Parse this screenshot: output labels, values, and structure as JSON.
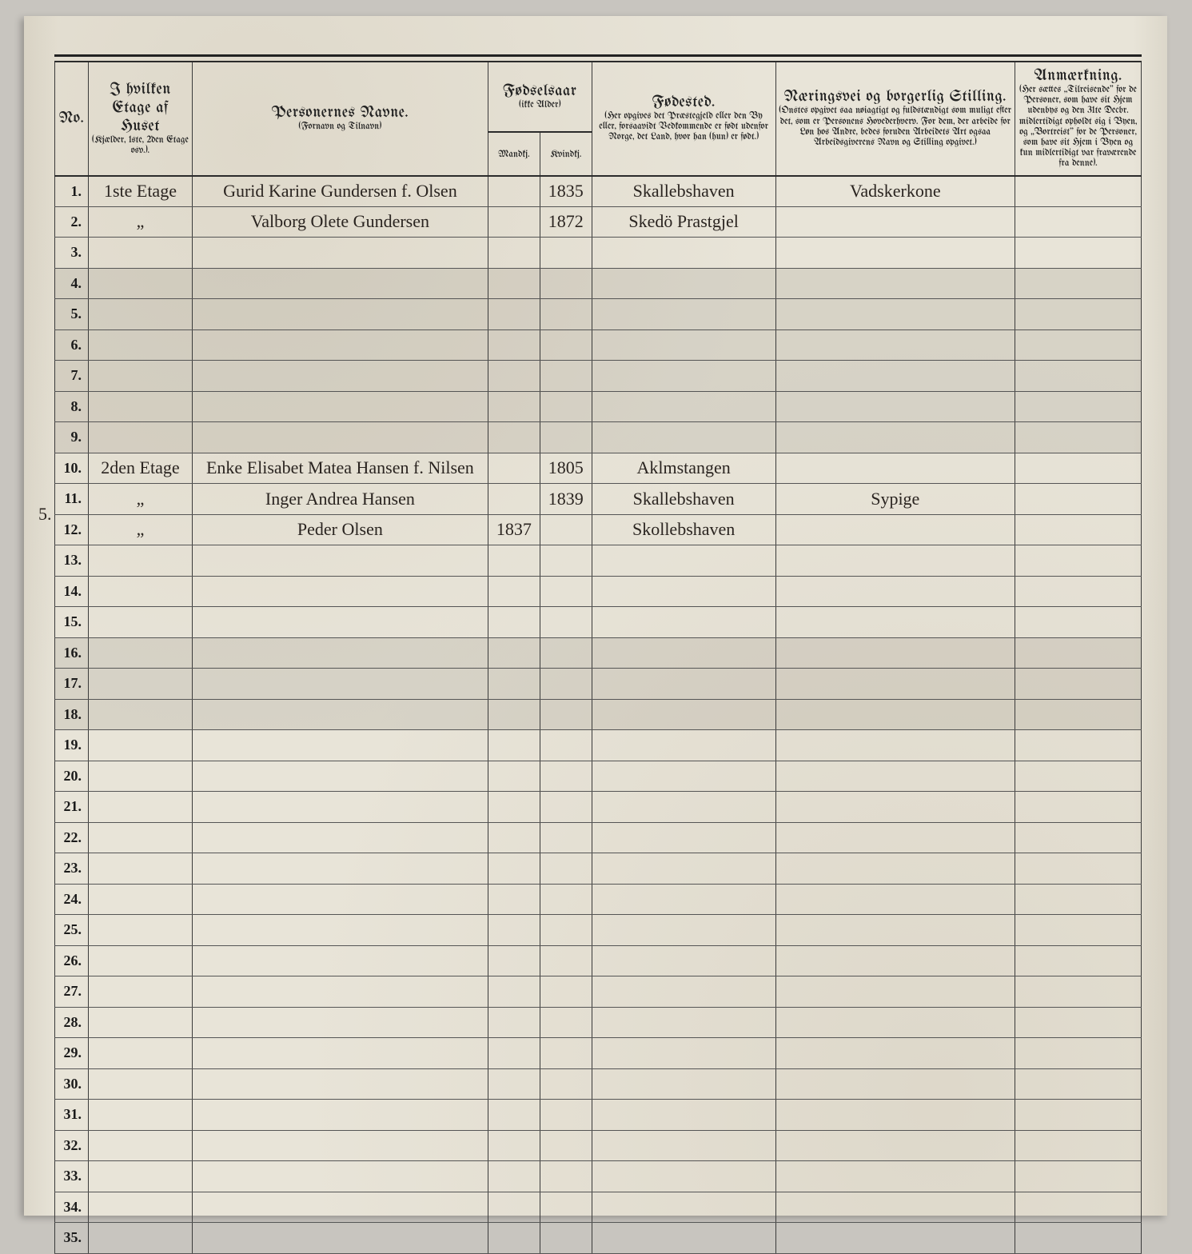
{
  "colors": {
    "page_bg": "#e8e4d8",
    "outer_bg": "#c8c5bf",
    "rule": "#3a3a3a",
    "heavy_rule": "#2b2b2b",
    "ink": "#2a2420",
    "shade": "rgba(120,115,100,0.15)"
  },
  "headers": {
    "no": "No.",
    "etage_main": "I hvilken Etage af Huset",
    "etage_sub": "(Kjælder, 1ste, 2den Etage osv.).",
    "navn_main": "Personernes Navne.",
    "navn_sub": "(Fornavn og Tilnavn)",
    "fodsel_main": "Fødselsaar",
    "fodsel_sub": "(ikke Alder)",
    "mandkj": "Mandkj.",
    "kvindkj": "Kvindkj.",
    "fodested_main": "Fødested.",
    "fodested_sub": "(Her opgives det Præstegjeld eller den By eller, forsaavidt Vedkommende er født udenfor Norge, det Land, hvor han (hun) er født.)",
    "stilling_main": "Næringsvei og borgerlig Stilling.",
    "stilling_sub": "(Onstes opgivet saa nøiagtigt og fuldstændigt som muligt efter det, som er Personens Hovederhverv. For dem, der arbeide for Løn hos Andre, bedes foruden Arbeidets Art ogsaa Arbeidsgiverens Navn og Stilling opgivet.)",
    "anm_main": "Anmærkning.",
    "anm_sub": "(Her sættes „Tilreisende\" for de Personer, som have sit Hjem udenbys og den 31te Decbr. midlertidigt opholdt sig i Byen, og „Bortreist\" for de Personer, som have sit Hjem i Byen og kun midlertidigt var fraværende fra denne)."
  },
  "rows": [
    {
      "n": "1.",
      "etage": "1ste Etage",
      "navn": "Gurid Karine Gundersen f. Olsen",
      "mand": "",
      "kvind": "1835",
      "fode": "Skallebshaven",
      "still": "Vadskerkone",
      "anm": ""
    },
    {
      "n": "2.",
      "etage": "„",
      "navn": "Valborg Olete Gundersen",
      "mand": "",
      "kvind": "1872",
      "fode": "Skedö Prastgjel",
      "still": "",
      "anm": ""
    },
    {
      "n": "3.",
      "etage": "",
      "navn": "",
      "mand": "",
      "kvind": "",
      "fode": "",
      "still": "",
      "anm": ""
    },
    {
      "n": "4.",
      "etage": "",
      "navn": "",
      "mand": "",
      "kvind": "",
      "fode": "",
      "still": "",
      "anm": ""
    },
    {
      "n": "5.",
      "etage": "",
      "navn": "",
      "mand": "",
      "kvind": "",
      "fode": "",
      "still": "",
      "anm": ""
    },
    {
      "n": "6.",
      "etage": "",
      "navn": "",
      "mand": "",
      "kvind": "",
      "fode": "",
      "still": "",
      "anm": ""
    },
    {
      "n": "7.",
      "etage": "",
      "navn": "",
      "mand": "",
      "kvind": "",
      "fode": "",
      "still": "",
      "anm": ""
    },
    {
      "n": "8.",
      "etage": "",
      "navn": "",
      "mand": "",
      "kvind": "",
      "fode": "",
      "still": "",
      "anm": ""
    },
    {
      "n": "9.",
      "etage": "",
      "navn": "",
      "mand": "",
      "kvind": "",
      "fode": "",
      "still": "",
      "anm": ""
    },
    {
      "n": "10.",
      "etage": "2den Etage",
      "navn": "Enke Elisabet Matea Hansen f. Nilsen",
      "mand": "",
      "kvind": "1805",
      "fode": "Aklmstangen",
      "still": "",
      "anm": ""
    },
    {
      "n": "11.",
      "etage": "„",
      "navn": "Inger Andrea Hansen",
      "mand": "",
      "kvind": "1839",
      "fode": "Skallebshaven",
      "still": "Sypige",
      "anm": ""
    },
    {
      "n": "12.",
      "etage": "„",
      "navn": "Peder Olsen",
      "mand": "1837",
      "kvind": "",
      "fode": "Skollebshaven",
      "still": "",
      "anm": ""
    },
    {
      "n": "13.",
      "etage": "",
      "navn": "",
      "mand": "",
      "kvind": "",
      "fode": "",
      "still": "",
      "anm": ""
    },
    {
      "n": "14.",
      "etage": "",
      "navn": "",
      "mand": "",
      "kvind": "",
      "fode": "",
      "still": "",
      "anm": ""
    },
    {
      "n": "15.",
      "etage": "",
      "navn": "",
      "mand": "",
      "kvind": "",
      "fode": "",
      "still": "",
      "anm": ""
    },
    {
      "n": "16.",
      "etage": "",
      "navn": "",
      "mand": "",
      "kvind": "",
      "fode": "",
      "still": "",
      "anm": ""
    },
    {
      "n": "17.",
      "etage": "",
      "navn": "",
      "mand": "",
      "kvind": "",
      "fode": "",
      "still": "",
      "anm": ""
    },
    {
      "n": "18.",
      "etage": "",
      "navn": "",
      "mand": "",
      "kvind": "",
      "fode": "",
      "still": "",
      "anm": ""
    },
    {
      "n": "19.",
      "etage": "",
      "navn": "",
      "mand": "",
      "kvind": "",
      "fode": "",
      "still": "",
      "anm": ""
    },
    {
      "n": "20.",
      "etage": "",
      "navn": "",
      "mand": "",
      "kvind": "",
      "fode": "",
      "still": "",
      "anm": ""
    },
    {
      "n": "21.",
      "etage": "",
      "navn": "",
      "mand": "",
      "kvind": "",
      "fode": "",
      "still": "",
      "anm": ""
    },
    {
      "n": "22.",
      "etage": "",
      "navn": "",
      "mand": "",
      "kvind": "",
      "fode": "",
      "still": "",
      "anm": ""
    },
    {
      "n": "23.",
      "etage": "",
      "navn": "",
      "mand": "",
      "kvind": "",
      "fode": "",
      "still": "",
      "anm": ""
    },
    {
      "n": "24.",
      "etage": "",
      "navn": "",
      "mand": "",
      "kvind": "",
      "fode": "",
      "still": "",
      "anm": ""
    },
    {
      "n": "25.",
      "etage": "",
      "navn": "",
      "mand": "",
      "kvind": "",
      "fode": "",
      "still": "",
      "anm": ""
    },
    {
      "n": "26.",
      "etage": "",
      "navn": "",
      "mand": "",
      "kvind": "",
      "fode": "",
      "still": "",
      "anm": ""
    },
    {
      "n": "27.",
      "etage": "",
      "navn": "",
      "mand": "",
      "kvind": "",
      "fode": "",
      "still": "",
      "anm": ""
    },
    {
      "n": "28.",
      "etage": "",
      "navn": "",
      "mand": "",
      "kvind": "",
      "fode": "",
      "still": "",
      "anm": ""
    },
    {
      "n": "29.",
      "etage": "",
      "navn": "",
      "mand": "",
      "kvind": "",
      "fode": "",
      "still": "",
      "anm": ""
    },
    {
      "n": "30.",
      "etage": "",
      "navn": "",
      "mand": "",
      "kvind": "",
      "fode": "",
      "still": "",
      "anm": ""
    },
    {
      "n": "31.",
      "etage": "",
      "navn": "",
      "mand": "",
      "kvind": "",
      "fode": "",
      "still": "",
      "anm": ""
    },
    {
      "n": "32.",
      "etage": "",
      "navn": "",
      "mand": "",
      "kvind": "",
      "fode": "",
      "still": "",
      "anm": ""
    },
    {
      "n": "33.",
      "etage": "",
      "navn": "",
      "mand": "",
      "kvind": "",
      "fode": "",
      "still": "",
      "anm": ""
    },
    {
      "n": "34.",
      "etage": "",
      "navn": "",
      "mand": "",
      "kvind": "",
      "fode": "",
      "still": "",
      "anm": ""
    },
    {
      "n": "35.",
      "etage": "",
      "navn": "",
      "mand": "",
      "kvind": "",
      "fode": "",
      "still": "",
      "anm": ""
    }
  ],
  "shaded_rows": [
    3,
    4,
    5,
    6,
    7,
    8,
    15,
    16,
    17
  ],
  "margin_note": "5."
}
